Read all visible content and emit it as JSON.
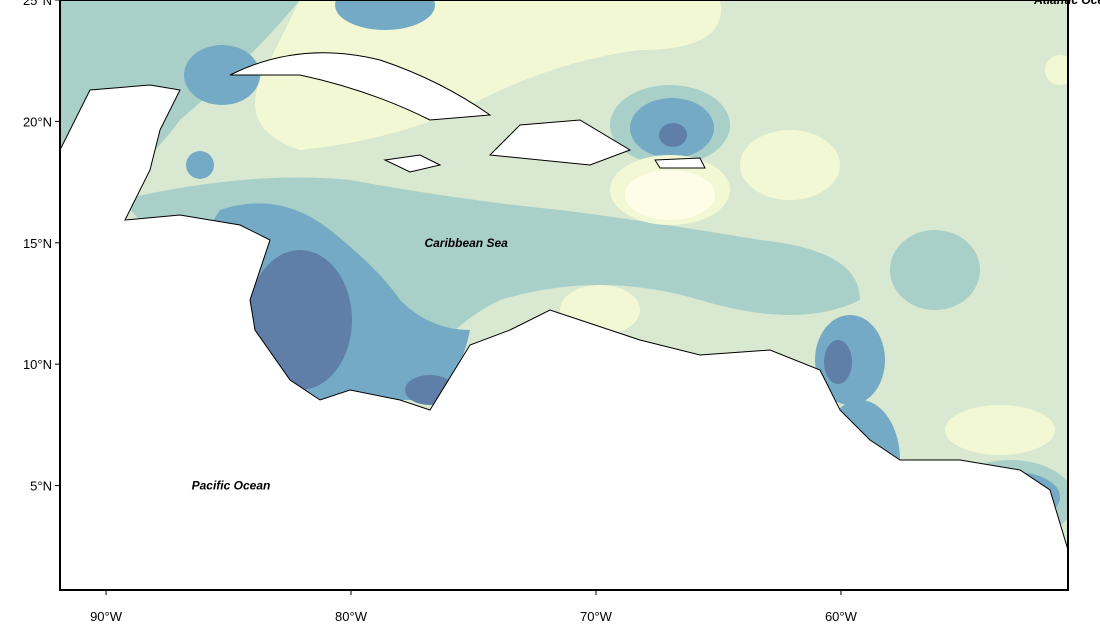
{
  "map": {
    "xlim": [
      -91.88,
      -50.73
    ],
    "ylim": [
      0.7,
      25
    ],
    "x_ticks": [
      {
        "value": -90,
        "label": "90°W"
      },
      {
        "value": -80,
        "label": "80°W"
      },
      {
        "value": -70,
        "label": "70°W"
      },
      {
        "value": -60,
        "label": "60°W"
      }
    ],
    "y_ticks": [
      {
        "value": 25,
        "label": "25°N"
      },
      {
        "value": 20,
        "label": "20°N"
      },
      {
        "value": 15,
        "label": "15°N"
      },
      {
        "value": 10,
        "label": "10°N"
      },
      {
        "value": 5,
        "label": "5°N"
      }
    ],
    "labels": [
      {
        "text": "Atlantic Ocean",
        "lon": -50.4,
        "lat": 25
      },
      {
        "text": "Caribbean Sea",
        "lon": -75.3,
        "lat": 15
      },
      {
        "text": "Pacific Ocean",
        "lon": -84.9,
        "lat": 5
      }
    ]
  }
}
